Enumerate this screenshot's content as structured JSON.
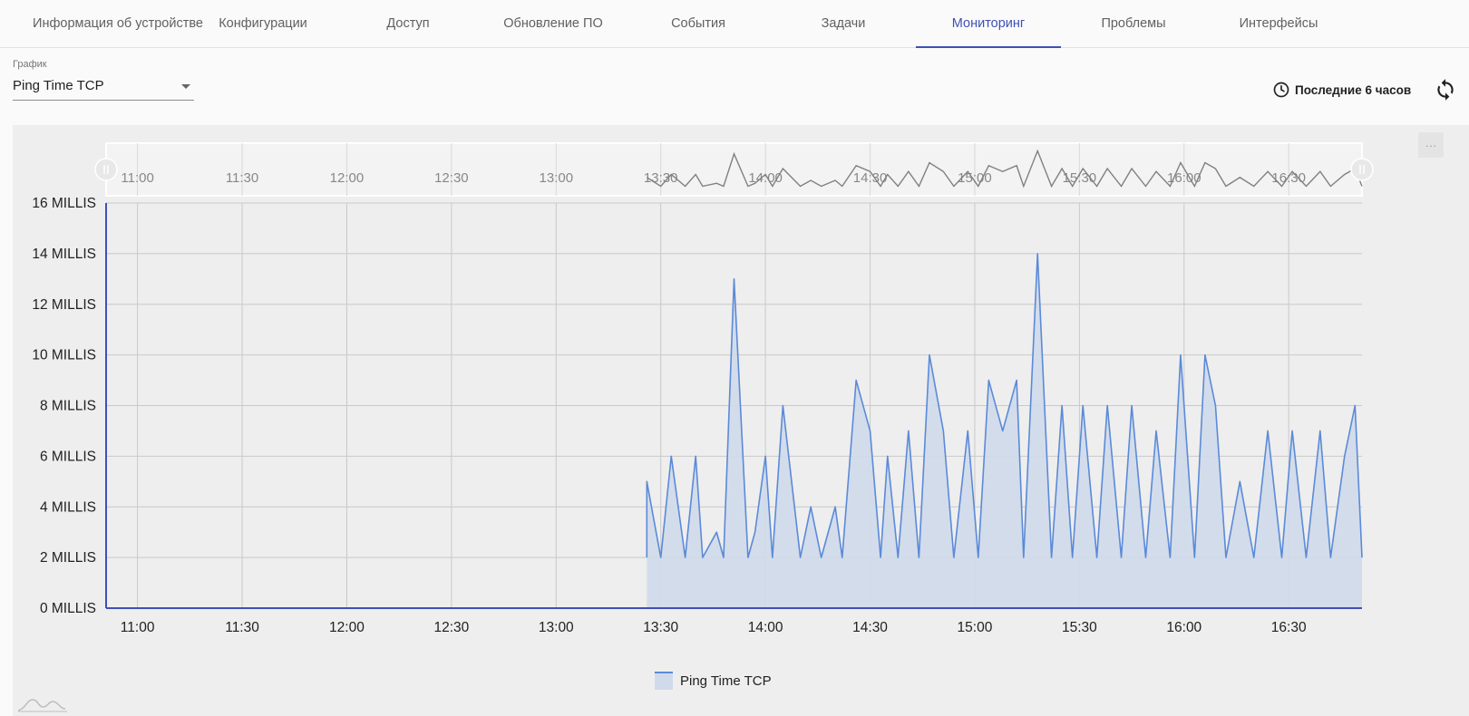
{
  "tabs": [
    {
      "label": "Информация об устройстве",
      "active": false
    },
    {
      "label": "Конфигурации",
      "active": false
    },
    {
      "label": "Доступ",
      "active": false
    },
    {
      "label": "Обновление ПО",
      "active": false
    },
    {
      "label": "События",
      "active": false
    },
    {
      "label": "Задачи",
      "active": false
    },
    {
      "label": "Мониторинг",
      "active": true
    },
    {
      "label": "Проблемы",
      "active": false
    },
    {
      "label": "Интерфейсы",
      "active": false
    }
  ],
  "graph_select": {
    "label": "График",
    "value": "Ping Time TCP"
  },
  "time_range": {
    "label": "Последние 6 часов",
    "icon": "clock-icon"
  },
  "refresh": {
    "icon": "refresh-icon"
  },
  "chart_menu": {
    "label": "···"
  },
  "colors": {
    "accent": "#3f51b5",
    "series_line": "#5b8ad8",
    "series_fill": "#d0daea",
    "overview_line": "#808080"
  },
  "chart_data": {
    "type": "area",
    "title": "",
    "xlabel": "",
    "ylabel": "",
    "x_ticks": [
      "11:00",
      "11:30",
      "12:00",
      "12:30",
      "13:00",
      "13:30",
      "14:00",
      "14:30",
      "15:00",
      "15:30",
      "16:00",
      "16:30"
    ],
    "x_range": [
      "10:51",
      "16:51"
    ],
    "y_ticks": [
      "0 MILLIS",
      "2 MILLIS",
      "4 MILLIS",
      "6 MILLIS",
      "8 MILLIS",
      "10 MILLIS",
      "12 MILLIS",
      "14 MILLIS",
      "16 MILLIS"
    ],
    "ylim": [
      0,
      16
    ],
    "grid": true,
    "legend": "bottom-center",
    "series": [
      {
        "name": "Ping Time TCP",
        "x": [
          "13:26",
          "13:30",
          "13:33",
          "13:37",
          "13:40",
          "13:42",
          "13:46",
          "13:48",
          "13:51",
          "13:55",
          "13:57",
          "14:00",
          "14:02",
          "14:05",
          "14:10",
          "14:13",
          "14:16",
          "14:20",
          "14:22",
          "14:26",
          "14:30",
          "14:33",
          "14:35",
          "14:38",
          "14:41",
          "14:44",
          "14:47",
          "14:51",
          "14:54",
          "14:58",
          "15:01",
          "15:04",
          "15:08",
          "15:12",
          "15:14",
          "15:18",
          "15:22",
          "15:25",
          "15:28",
          "15:31",
          "15:35",
          "15:38",
          "15:42",
          "15:45",
          "15:49",
          "15:52",
          "15:56",
          "15:59",
          "16:03",
          "16:06",
          "16:09",
          "16:12",
          "16:16",
          "16:20",
          "16:24",
          "16:28",
          "16:31",
          "16:35",
          "16:39",
          "16:42",
          "16:46",
          "16:49",
          "16:51"
        ],
        "y": [
          5,
          2,
          6,
          2,
          6,
          2,
          3,
          2,
          13,
          2,
          3,
          6,
          2,
          8,
          2,
          4,
          2,
          4,
          2,
          9,
          7,
          2,
          6,
          2,
          7,
          2,
          10,
          7,
          2,
          7,
          2,
          9,
          7,
          9,
          2,
          14,
          2,
          8,
          2,
          8,
          2,
          8,
          2,
          8,
          2,
          7,
          2,
          10,
          2,
          10,
          8,
          2,
          5,
          2,
          7,
          2,
          7,
          2,
          7,
          2,
          6,
          8,
          2
        ]
      }
    ]
  },
  "legend_label": "Ping Time TCP"
}
